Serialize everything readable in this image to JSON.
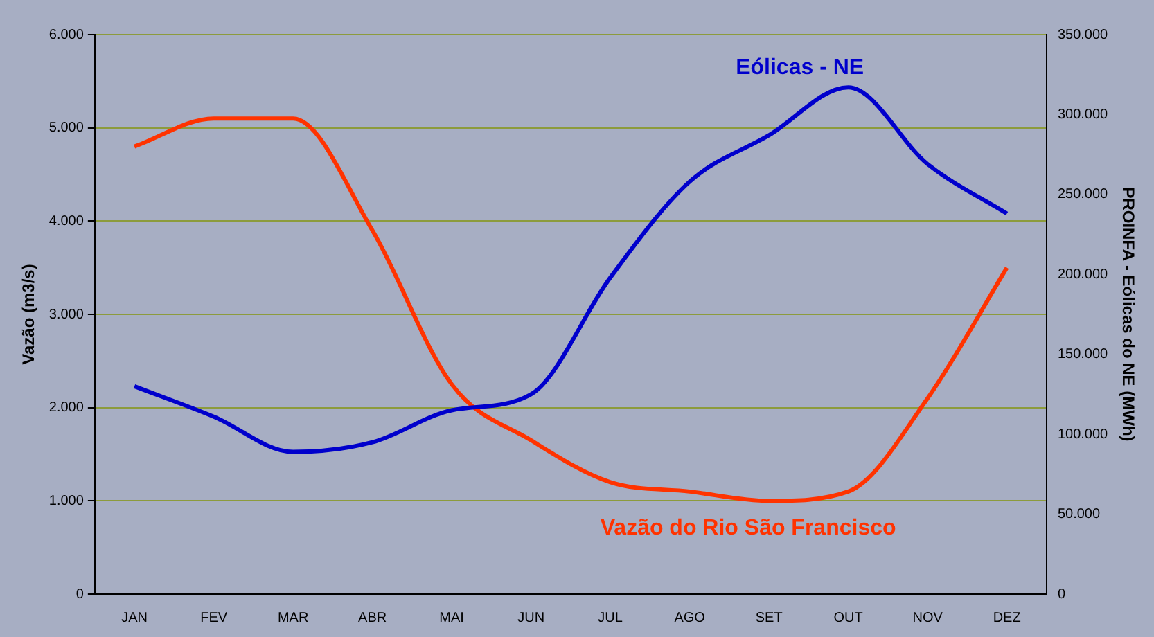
{
  "chart_data": {
    "type": "line",
    "ylabel": "Vazão (m3/s)",
    "y2label": "PROINFA - Eólicas do NE (MWh)",
    "categories": [
      "JAN",
      "FEV",
      "MAR",
      "ABR",
      "MAI",
      "JUN",
      "JUL",
      "AGO",
      "SET",
      "OUT",
      "NOV",
      "DEZ"
    ],
    "series": [
      {
        "name": "Eólicas - NE",
        "color": "#0000cc",
        "axis": "y2",
        "values": [
          130000,
          111000,
          89000,
          95000,
          115000,
          125000,
          198000,
          258000,
          287000,
          317000,
          269000,
          238000
        ]
      },
      {
        "name": "Vazão do Rio São Francisco",
        "color": "#ff3300",
        "values": [
          4800,
          5100,
          5100,
          3900,
          2250,
          1650,
          1200,
          1100,
          1000,
          1100,
          2100,
          3500
        ]
      }
    ],
    "ylim": [
      0,
      6000
    ],
    "yticks": [
      0,
      {
        "value": 1000,
        "label": "1.000"
      },
      {
        "value": 2000,
        "label": "2.000"
      },
      {
        "value": 3000,
        "label": "3.000"
      },
      {
        "value": 4000,
        "label": "4.000"
      },
      {
        "value": 5000,
        "label": "5.000"
      },
      {
        "value": 6000,
        "label": "6.000"
      }
    ],
    "y2lim": [
      0,
      350000
    ],
    "y2ticks": [
      0,
      {
        "value": 50000,
        "label": "50.000"
      },
      {
        "value": 100000,
        "label": "100.000"
      },
      {
        "value": 150000,
        "label": "150.000"
      },
      {
        "value": 200000,
        "label": "200.000"
      },
      {
        "value": 250000,
        "label": "250.000"
      },
      {
        "value": 300000,
        "label": "300.000"
      },
      {
        "value": 350000,
        "label": "350.000"
      }
    ],
    "grid": "y",
    "legend": false,
    "marker": "none",
    "line_style": "solid"
  }
}
